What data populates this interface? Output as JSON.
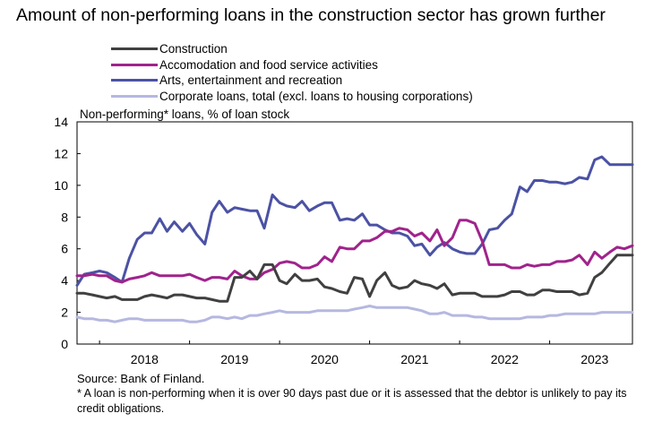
{
  "title": "Amount of non-performing loans in the construction sector has grown further",
  "chart_data": {
    "type": "line",
    "title": "Amount of non-performing loans in the construction sector has grown further",
    "ylabel": "Non-performing* loans, % of loan stock",
    "xlabel": "",
    "ylim": [
      0,
      14
    ],
    "yticks": [
      0,
      2,
      4,
      6,
      8,
      10,
      12,
      14
    ],
    "xlim": [
      2017.75,
      2023.92
    ],
    "xtick_labels": [
      "2018",
      "2019",
      "2020",
      "2021",
      "2022",
      "2023"
    ],
    "grid": false,
    "legend_position": "top",
    "series": [
      {
        "name": "Construction",
        "color": "#404040",
        "x": [
          2017.75,
          2017.83,
          2017.92,
          2018.0,
          2018.08,
          2018.17,
          2018.25,
          2018.33,
          2018.42,
          2018.5,
          2018.58,
          2018.67,
          2018.75,
          2018.83,
          2018.92,
          2019.0,
          2019.08,
          2019.17,
          2019.25,
          2019.33,
          2019.42,
          2019.5,
          2019.58,
          2019.67,
          2019.75,
          2019.83,
          2019.92,
          2020.0,
          2020.08,
          2020.17,
          2020.25,
          2020.33,
          2020.42,
          2020.5,
          2020.58,
          2020.67,
          2020.75,
          2020.83,
          2020.92,
          2021.0,
          2021.08,
          2021.17,
          2021.25,
          2021.33,
          2021.42,
          2021.5,
          2021.58,
          2021.67,
          2021.75,
          2021.83,
          2021.92,
          2022.0,
          2022.08,
          2022.17,
          2022.25,
          2022.33,
          2022.42,
          2022.5,
          2022.58,
          2022.67,
          2022.75,
          2022.83,
          2022.92,
          2023.0,
          2023.08,
          2023.17,
          2023.25,
          2023.33,
          2023.42,
          2023.5,
          2023.58,
          2023.67,
          2023.75,
          2023.83,
          2023.92
        ],
        "values": [
          3.2,
          3.2,
          3.1,
          3.0,
          2.9,
          3.0,
          2.8,
          2.8,
          2.8,
          3.0,
          3.1,
          3.0,
          2.9,
          3.1,
          3.1,
          3.0,
          2.9,
          2.9,
          2.8,
          2.7,
          2.7,
          4.2,
          4.2,
          4.6,
          4.1,
          5.0,
          5.0,
          4.0,
          3.8,
          4.4,
          4.0,
          4.0,
          4.1,
          3.6,
          3.5,
          3.3,
          3.2,
          4.2,
          4.1,
          3.0,
          4.0,
          4.5,
          3.7,
          3.5,
          3.6,
          4.0,
          3.8,
          3.7,
          3.5,
          3.8,
          3.1,
          3.2,
          3.2,
          3.2,
          3.0,
          3.0,
          3.0,
          3.1,
          3.3,
          3.3,
          3.1,
          3.1,
          3.4,
          3.4,
          3.3,
          3.3,
          3.3,
          3.1,
          3.2,
          4.2,
          4.5,
          5.1,
          5.6,
          5.6,
          5.6
        ]
      },
      {
        "name": "Accomodation and food service activities",
        "color": "#a0238c",
        "x": [
          2017.75,
          2017.83,
          2017.92,
          2018.0,
          2018.08,
          2018.17,
          2018.25,
          2018.33,
          2018.42,
          2018.5,
          2018.58,
          2018.67,
          2018.75,
          2018.83,
          2018.92,
          2019.0,
          2019.08,
          2019.17,
          2019.25,
          2019.33,
          2019.42,
          2019.5,
          2019.58,
          2019.67,
          2019.75,
          2019.83,
          2019.92,
          2020.0,
          2020.08,
          2020.17,
          2020.25,
          2020.33,
          2020.42,
          2020.5,
          2020.58,
          2020.67,
          2020.75,
          2020.83,
          2020.92,
          2021.0,
          2021.08,
          2021.17,
          2021.25,
          2021.33,
          2021.42,
          2021.5,
          2021.58,
          2021.67,
          2021.75,
          2021.83,
          2021.92,
          2022.0,
          2022.08,
          2022.17,
          2022.25,
          2022.33,
          2022.42,
          2022.5,
          2022.58,
          2022.67,
          2022.75,
          2022.83,
          2022.92,
          2023.0,
          2023.08,
          2023.17,
          2023.25,
          2023.33,
          2023.42,
          2023.5,
          2023.58,
          2023.67,
          2023.75,
          2023.83,
          2023.92
        ],
        "values": [
          4.3,
          4.3,
          4.4,
          4.3,
          4.3,
          4.0,
          3.9,
          4.1,
          4.2,
          4.3,
          4.5,
          4.3,
          4.3,
          4.3,
          4.3,
          4.4,
          4.2,
          4.0,
          4.2,
          4.2,
          4.1,
          4.6,
          4.3,
          4.1,
          4.1,
          4.5,
          4.7,
          5.1,
          5.2,
          5.1,
          4.8,
          4.8,
          5.0,
          5.5,
          5.2,
          6.1,
          6.0,
          6.0,
          6.5,
          6.5,
          6.7,
          7.1,
          7.1,
          7.3,
          7.2,
          6.8,
          7.0,
          6.5,
          7.2,
          6.2,
          6.7,
          7.8,
          7.8,
          7.6,
          6.5,
          5.0,
          5.0,
          5.0,
          4.8,
          4.8,
          5.0,
          4.9,
          5.0,
          5.0,
          5.2,
          5.2,
          5.3,
          5.6,
          5.0,
          5.8,
          5.4,
          5.8,
          6.1,
          6.0,
          6.2
        ]
      },
      {
        "name": "Arts, entertainment and recreation",
        "color": "#4b52a4",
        "x": [
          2017.75,
          2017.83,
          2017.92,
          2018.0,
          2018.08,
          2018.17,
          2018.25,
          2018.33,
          2018.42,
          2018.5,
          2018.58,
          2018.67,
          2018.75,
          2018.83,
          2018.92,
          2019.0,
          2019.08,
          2019.17,
          2019.25,
          2019.33,
          2019.42,
          2019.5,
          2019.58,
          2019.67,
          2019.75,
          2019.83,
          2019.92,
          2020.0,
          2020.08,
          2020.17,
          2020.25,
          2020.33,
          2020.42,
          2020.5,
          2020.58,
          2020.67,
          2020.75,
          2020.83,
          2020.92,
          2021.0,
          2021.08,
          2021.17,
          2021.25,
          2021.33,
          2021.42,
          2021.5,
          2021.58,
          2021.67,
          2021.75,
          2021.83,
          2021.92,
          2022.0,
          2022.08,
          2022.17,
          2022.25,
          2022.33,
          2022.42,
          2022.5,
          2022.58,
          2022.67,
          2022.75,
          2022.83,
          2022.92,
          2023.0,
          2023.08,
          2023.17,
          2023.25,
          2023.33,
          2023.42,
          2023.5,
          2023.58,
          2023.67,
          2023.75,
          2023.83,
          2023.92
        ],
        "values": [
          3.7,
          4.4,
          4.5,
          4.6,
          4.5,
          4.2,
          3.9,
          5.4,
          6.6,
          7.0,
          7.0,
          7.9,
          7.1,
          7.7,
          7.1,
          7.6,
          6.9,
          6.3,
          8.3,
          9.0,
          8.3,
          8.6,
          8.5,
          8.4,
          8.4,
          7.3,
          9.4,
          8.9,
          8.7,
          8.6,
          9.0,
          8.4,
          8.7,
          8.9,
          8.9,
          7.8,
          7.9,
          7.8,
          8.2,
          7.5,
          7.5,
          7.2,
          7.0,
          7.0,
          6.8,
          6.2,
          6.3,
          5.6,
          6.1,
          6.4,
          6.0,
          5.8,
          5.7,
          5.7,
          6.3,
          7.2,
          7.3,
          7.8,
          8.2,
          9.9,
          9.6,
          10.3,
          10.3,
          10.2,
          10.2,
          10.1,
          10.2,
          10.5,
          10.4,
          11.6,
          11.8,
          11.3,
          11.3,
          11.3,
          11.3
        ]
      },
      {
        "name": "Corporate loans, total (excl. loans to housing corporations)",
        "color": "#b5b8e0",
        "x": [
          2017.75,
          2017.83,
          2017.92,
          2018.0,
          2018.08,
          2018.17,
          2018.25,
          2018.33,
          2018.42,
          2018.5,
          2018.58,
          2018.67,
          2018.75,
          2018.83,
          2018.92,
          2019.0,
          2019.08,
          2019.17,
          2019.25,
          2019.33,
          2019.42,
          2019.5,
          2019.58,
          2019.67,
          2019.75,
          2019.83,
          2019.92,
          2020.0,
          2020.08,
          2020.17,
          2020.25,
          2020.33,
          2020.42,
          2020.5,
          2020.58,
          2020.67,
          2020.75,
          2020.83,
          2020.92,
          2021.0,
          2021.08,
          2021.17,
          2021.25,
          2021.33,
          2021.42,
          2021.5,
          2021.58,
          2021.67,
          2021.75,
          2021.83,
          2021.92,
          2022.0,
          2022.08,
          2022.17,
          2022.25,
          2022.33,
          2022.42,
          2022.5,
          2022.58,
          2022.67,
          2022.75,
          2022.83,
          2022.92,
          2023.0,
          2023.08,
          2023.17,
          2023.25,
          2023.33,
          2023.42,
          2023.5,
          2023.58,
          2023.67,
          2023.75,
          2023.83,
          2023.92
        ],
        "values": [
          1.7,
          1.6,
          1.6,
          1.5,
          1.5,
          1.4,
          1.5,
          1.6,
          1.6,
          1.5,
          1.5,
          1.5,
          1.5,
          1.5,
          1.5,
          1.4,
          1.4,
          1.5,
          1.7,
          1.7,
          1.6,
          1.7,
          1.6,
          1.8,
          1.8,
          1.9,
          2.0,
          2.1,
          2.0,
          2.0,
          2.0,
          2.0,
          2.1,
          2.1,
          2.1,
          2.1,
          2.1,
          2.2,
          2.3,
          2.4,
          2.3,
          2.3,
          2.3,
          2.3,
          2.3,
          2.2,
          2.1,
          1.9,
          1.9,
          2.0,
          1.8,
          1.8,
          1.8,
          1.7,
          1.7,
          1.6,
          1.6,
          1.6,
          1.6,
          1.6,
          1.7,
          1.7,
          1.7,
          1.8,
          1.8,
          1.9,
          1.9,
          1.9,
          1.9,
          1.9,
          2.0,
          2.0,
          2.0,
          2.0,
          2.0
        ]
      }
    ]
  },
  "footer": {
    "source": "Source: Bank of Finland.",
    "note": "* A loan is non-performing when it is over 90 days past due or it is assessed that the debtor is unlikely to pay its credit obligations."
  }
}
